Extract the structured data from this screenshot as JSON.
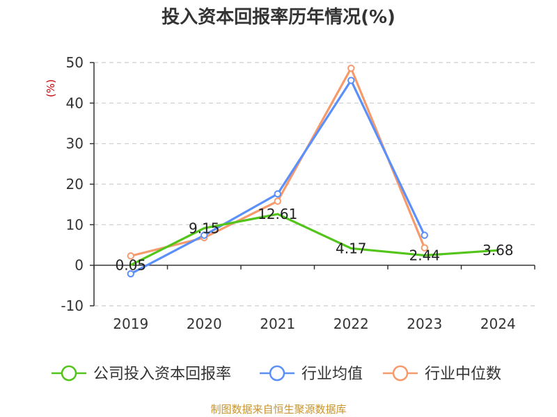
{
  "chart_data": {
    "type": "line",
    "title": "投入资本回报率历年情况(%)",
    "unit_label": "(%)",
    "categories": [
      "2019",
      "2020",
      "2021",
      "2022",
      "2023",
      "2024"
    ],
    "ylim": [
      -10,
      50
    ],
    "yticks": [
      "50",
      "40",
      "30",
      "20",
      "10",
      "0",
      "-10"
    ],
    "grid": true,
    "legend_position": "bottom",
    "series": [
      {
        "name": "公司投入资本回报率",
        "color": "#52c41a",
        "values": [
          0.05,
          9.15,
          12.61,
          4.17,
          2.44,
          3.68
        ],
        "labels": [
          "0.05",
          "9.15",
          "12.61",
          "4.17",
          "2.44",
          "3.68"
        ]
      },
      {
        "name": "行业均值",
        "color": "#5b8ff9",
        "values": [
          -2.1,
          7.4,
          17.6,
          45.6,
          7.4,
          null
        ]
      },
      {
        "name": "行业中位数",
        "color": "#f79a6b",
        "values": [
          2.3,
          6.8,
          15.8,
          48.6,
          4.3,
          null
        ]
      }
    ]
  },
  "source_text": "制图数据来自恒生聚源数据库"
}
